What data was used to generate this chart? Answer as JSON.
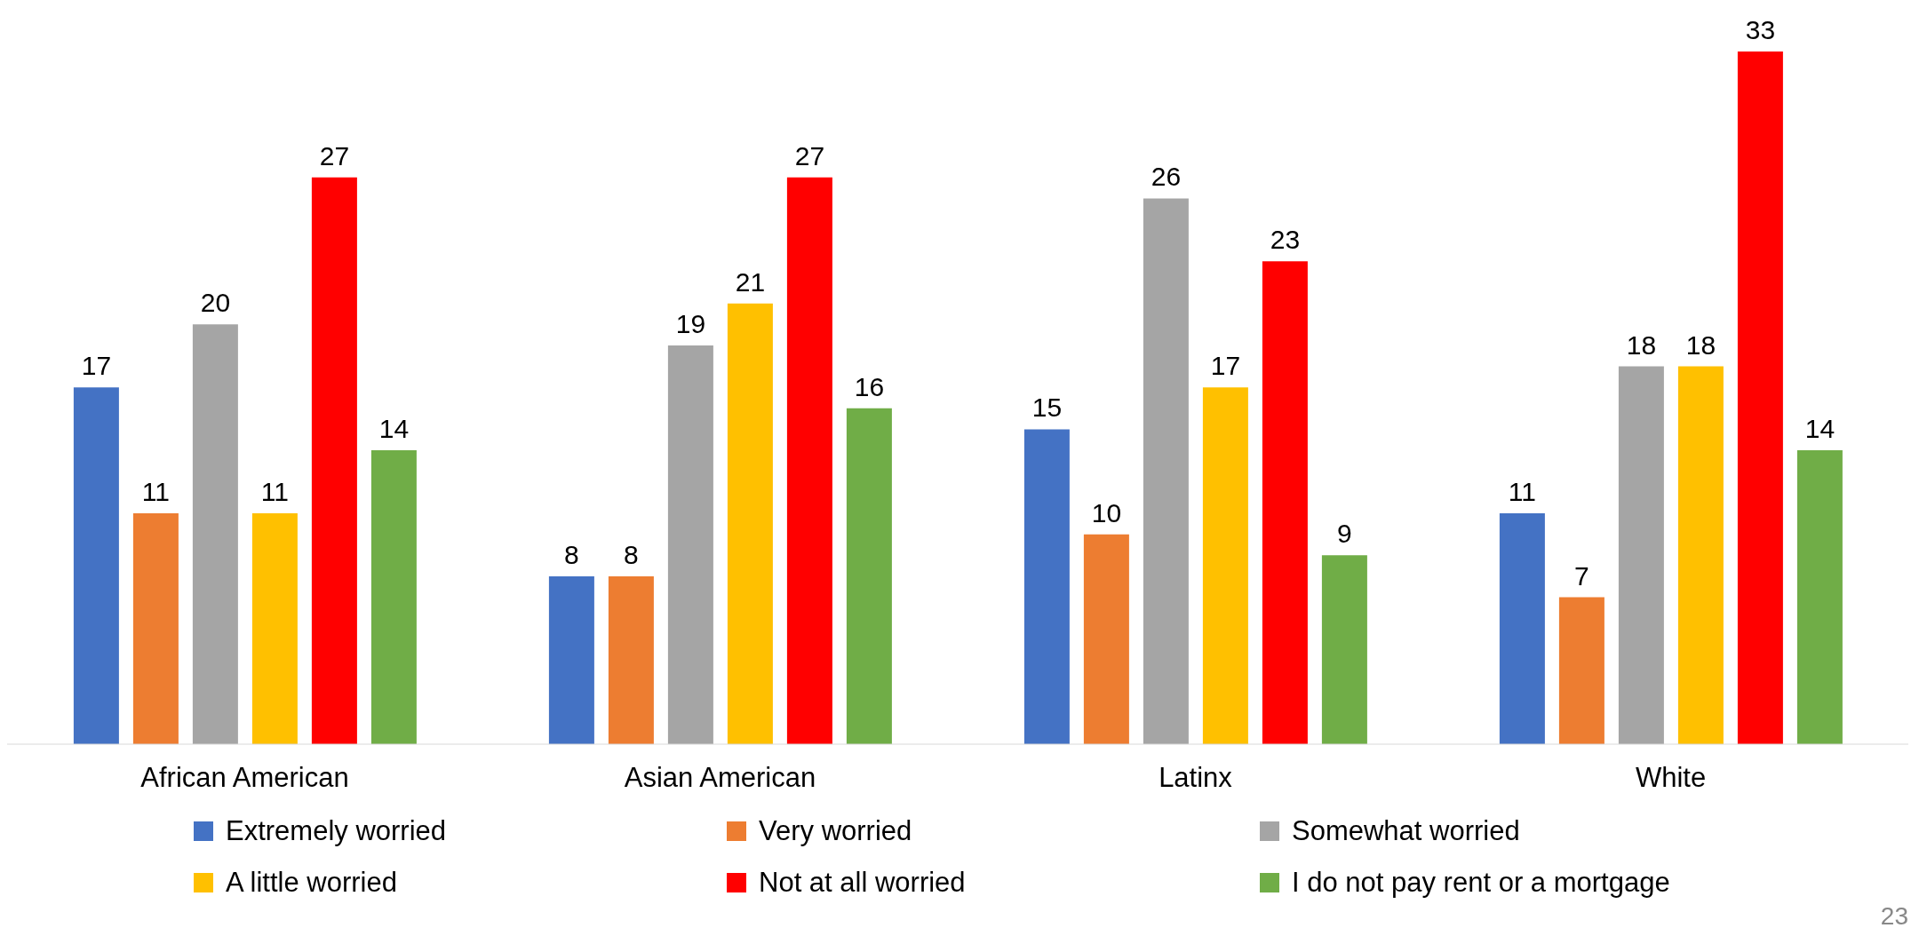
{
  "chart_data": {
    "type": "bar",
    "categories": [
      "African American",
      "Asian American",
      "Latinx",
      "White"
    ],
    "series": [
      {
        "name": "Extremely worried",
        "color": "#4472c4",
        "values": [
          17,
          8,
          15,
          11
        ]
      },
      {
        "name": "Very worried",
        "color": "#ed7d31",
        "values": [
          11,
          8,
          10,
          7
        ]
      },
      {
        "name": "Somewhat worried",
        "color": "#a5a5a5",
        "values": [
          20,
          19,
          26,
          18
        ]
      },
      {
        "name": "A little worried",
        "color": "#ffc000",
        "values": [
          11,
          21,
          17,
          18
        ]
      },
      {
        "name": "Not at all worried",
        "color": "#ff0000",
        "values": [
          27,
          27,
          23,
          33
        ]
      },
      {
        "name": "I do not pay rent or a mortgage",
        "color": "#70ad47",
        "values": [
          14,
          16,
          9,
          14
        ]
      }
    ],
    "data_labels": true,
    "legend": "bottom",
    "tick_labels": "x",
    "annotations": [
      "23"
    ]
  }
}
